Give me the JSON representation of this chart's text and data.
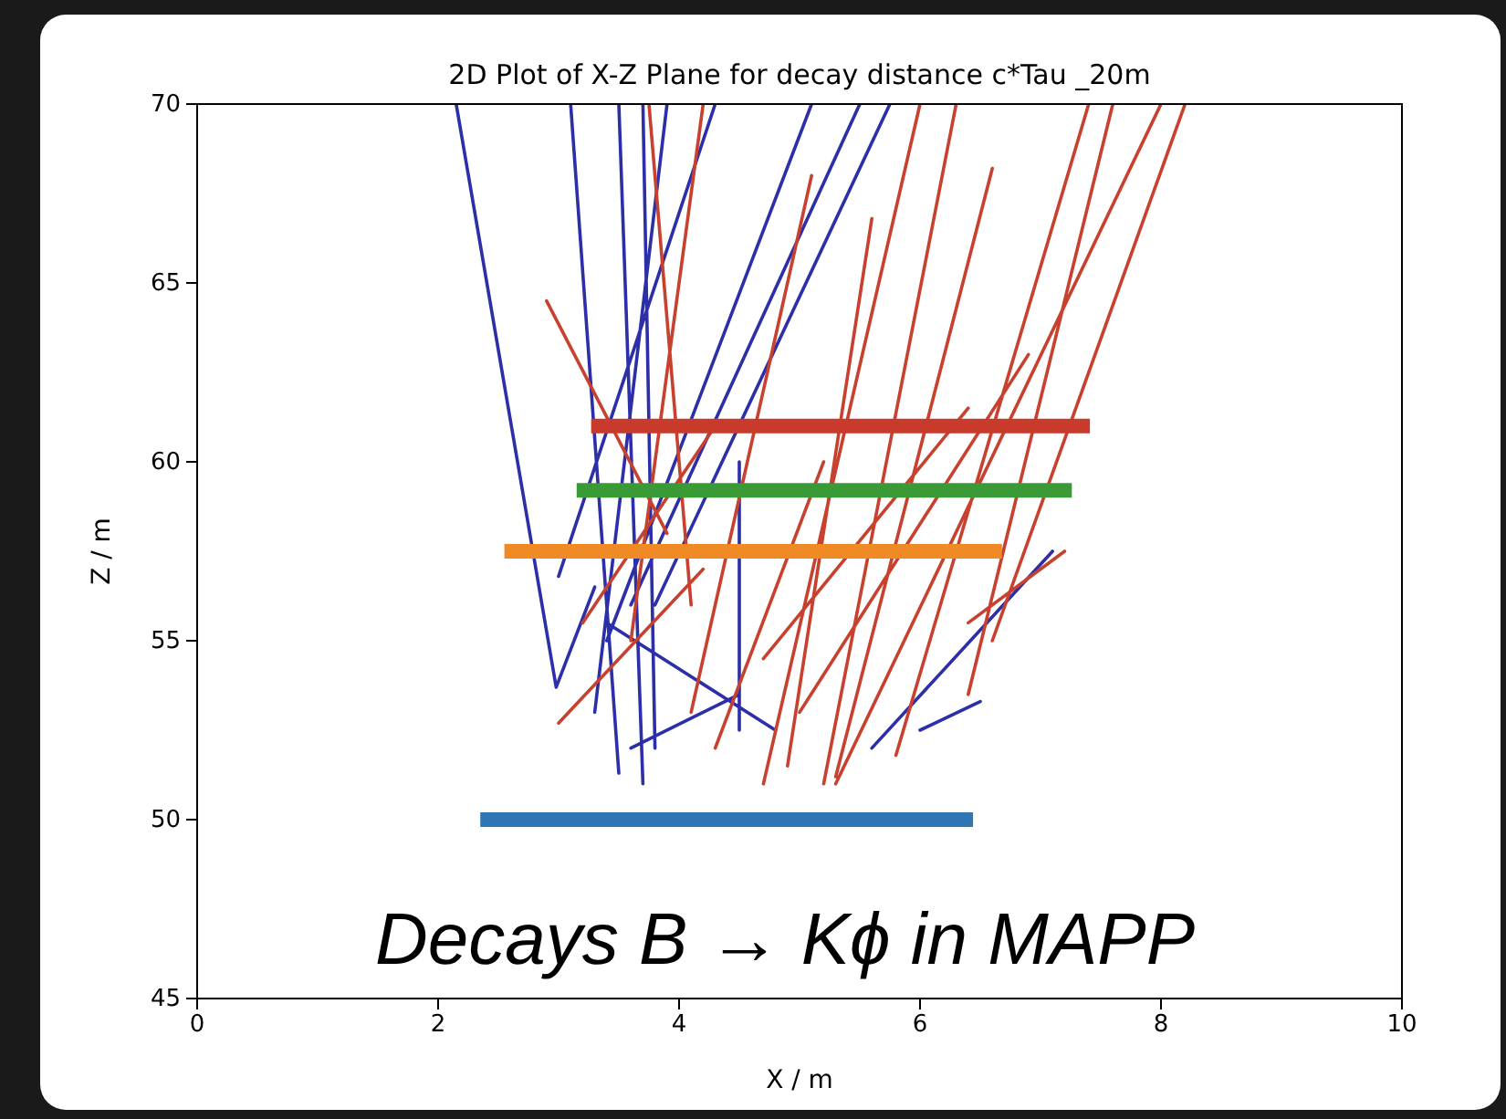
{
  "chart_data": {
    "type": "line",
    "title": "2D Plot of X-Z Plane for decay distance c*Tau _20m",
    "xlabel": "X / m",
    "ylabel": "Z / m",
    "xlim": [
      0,
      10
    ],
    "ylim": [
      45,
      70
    ],
    "xticks": [
      0,
      2,
      4,
      6,
      8,
      10
    ],
    "yticks": [
      45,
      50,
      55,
      60,
      65,
      70
    ],
    "annotations": [
      "Decays B → Kϕ in MAPP"
    ],
    "series": [
      {
        "color": "#2c2fa8",
        "x": [
          2.15,
          2.98,
          3.3,
          null,
          3.1,
          3.5,
          null,
          3.5,
          3.7,
          null,
          3.9,
          3.3,
          null,
          4.3,
          3.0,
          null,
          5.1,
          3.4,
          null,
          5.5,
          3.6,
          null,
          5.75,
          3.8,
          null,
          3.4,
          4.8,
          null,
          3.6,
          4.5,
          null,
          5.6,
          7.1,
          null,
          6.0,
          6.5,
          null,
          3.7,
          3.8,
          null,
          4.5,
          4.5
        ],
        "values": [
          70,
          53.7,
          56.5,
          null,
          70,
          51.3,
          null,
          70,
          51.0,
          null,
          70,
          53,
          null,
          70,
          56.8,
          null,
          70,
          55,
          null,
          70,
          56,
          null,
          70,
          56,
          null,
          55.5,
          52.5,
          null,
          52,
          53.5,
          null,
          52,
          57.5,
          null,
          52.5,
          53.3,
          null,
          70,
          52,
          null,
          52.5,
          60
        ]
      },
      {
        "color": "#c8412f",
        "x": [
          2.9,
          3.9,
          null,
          4.2,
          3.6,
          null,
          3.75,
          4.1,
          null,
          5.1,
          4.1,
          null,
          5.6,
          4.9,
          null,
          6.0,
          4.7,
          null,
          6.3,
          5.2,
          null,
          6.6,
          5.3,
          null,
          7.4,
          5.8,
          null,
          7.6,
          6.4,
          null,
          8.2,
          6.6,
          null,
          8.0,
          5.3,
          null,
          6.9,
          5.0,
          null,
          6.4,
          4.7,
          null,
          5.2,
          4.3,
          null,
          3.2,
          4.3,
          null,
          4.2,
          3.0,
          null,
          7.2,
          6.4
        ],
        "values": [
          64.5,
          58,
          null,
          70,
          55,
          null,
          70,
          56,
          null,
          68,
          53,
          null,
          66.8,
          51.5,
          null,
          70,
          51,
          null,
          70,
          51,
          null,
          68.2,
          51.2,
          null,
          70,
          51.8,
          null,
          70,
          53.5,
          null,
          70,
          55,
          null,
          70,
          51,
          null,
          63,
          53,
          null,
          61.5,
          54.5,
          null,
          60,
          52,
          null,
          55.5,
          61,
          null,
          57,
          52.7,
          null,
          57.5,
          55.5
        ]
      },
      {
        "color": "#2e77b4",
        "x": [
          2.35,
          6.44
        ],
        "values": [
          50,
          50
        ]
      },
      {
        "color": "#f08a24",
        "x": [
          2.55,
          6.68
        ],
        "values": [
          57.5,
          57.5
        ]
      },
      {
        "color": "#3a9a35",
        "x": [
          3.15,
          7.26
        ],
        "values": [
          59.2,
          59.2
        ]
      },
      {
        "color": "#c83a2b",
        "x": [
          3.27,
          7.41
        ],
        "values": [
          61,
          61
        ]
      }
    ]
  }
}
